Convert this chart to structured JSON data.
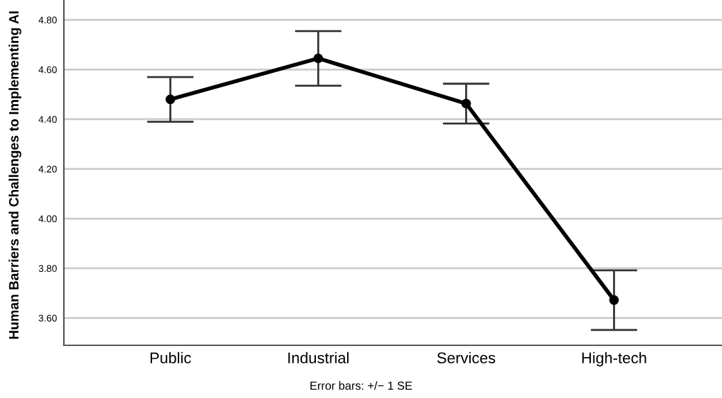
{
  "chart_data": {
    "type": "line",
    "ylabel": "Human Barriers and Challenges to Implementing AI",
    "categories": [
      "Public",
      "Industrial",
      "Services",
      "High-tech"
    ],
    "series": [
      {
        "color": "#000000",
        "values": [
          4.48,
          4.645,
          4.463,
          3.672
        ],
        "errors": [
          0.09,
          0.11,
          0.08,
          0.12
        ]
      }
    ],
    "ylim": [
      3.49,
      4.88
    ],
    "yticks": [
      {
        "value": 3.6,
        "label": "3.60"
      },
      {
        "value": 3.8,
        "label": "3.80"
      },
      {
        "value": 4.0,
        "label": "4.00"
      },
      {
        "value": 4.2,
        "label": "4.20"
      },
      {
        "value": 4.4,
        "label": "4.40"
      },
      {
        "value": 4.6,
        "label": "4.60"
      },
      {
        "value": 4.8,
        "label": "4.80"
      }
    ],
    "grid": "y",
    "marker": "circle",
    "line_style": "solid",
    "legend": false,
    "annotations": [
      "Error bars: +/− 1 SE"
    ]
  }
}
